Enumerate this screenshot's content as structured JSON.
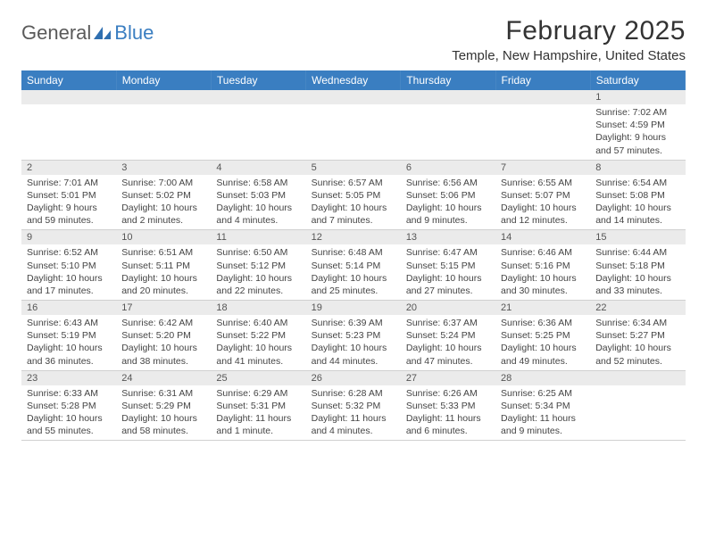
{
  "logo": {
    "text_general": "General",
    "text_blue": "Blue",
    "accent_color": "#2f6fb0"
  },
  "title": "February 2025",
  "location": "Temple, New Hampshire, United States",
  "colors": {
    "header_bg": "#3a7ec1",
    "header_text": "#ffffff",
    "daynum_bg": "#ebebeb",
    "text": "#333333",
    "body_text": "#444444",
    "border": "#d0d0d0",
    "background": "#ffffff"
  },
  "typography": {
    "title_fontsize": 30,
    "location_fontsize": 15,
    "header_fontsize": 12,
    "daynum_fontsize": 11,
    "detail_fontsize": 10.5
  },
  "day_names": [
    "Sunday",
    "Monday",
    "Tuesday",
    "Wednesday",
    "Thursday",
    "Friday",
    "Saturday"
  ],
  "weeks": [
    [
      null,
      null,
      null,
      null,
      null,
      null,
      {
        "n": "1",
        "sunrise": "Sunrise: 7:02 AM",
        "sunset": "Sunset: 4:59 PM",
        "day1": "Daylight: 9 hours",
        "day2": "and 57 minutes."
      }
    ],
    [
      {
        "n": "2",
        "sunrise": "Sunrise: 7:01 AM",
        "sunset": "Sunset: 5:01 PM",
        "day1": "Daylight: 9 hours",
        "day2": "and 59 minutes."
      },
      {
        "n": "3",
        "sunrise": "Sunrise: 7:00 AM",
        "sunset": "Sunset: 5:02 PM",
        "day1": "Daylight: 10 hours",
        "day2": "and 2 minutes."
      },
      {
        "n": "4",
        "sunrise": "Sunrise: 6:58 AM",
        "sunset": "Sunset: 5:03 PM",
        "day1": "Daylight: 10 hours",
        "day2": "and 4 minutes."
      },
      {
        "n": "5",
        "sunrise": "Sunrise: 6:57 AM",
        "sunset": "Sunset: 5:05 PM",
        "day1": "Daylight: 10 hours",
        "day2": "and 7 minutes."
      },
      {
        "n": "6",
        "sunrise": "Sunrise: 6:56 AM",
        "sunset": "Sunset: 5:06 PM",
        "day1": "Daylight: 10 hours",
        "day2": "and 9 minutes."
      },
      {
        "n": "7",
        "sunrise": "Sunrise: 6:55 AM",
        "sunset": "Sunset: 5:07 PM",
        "day1": "Daylight: 10 hours",
        "day2": "and 12 minutes."
      },
      {
        "n": "8",
        "sunrise": "Sunrise: 6:54 AM",
        "sunset": "Sunset: 5:08 PM",
        "day1": "Daylight: 10 hours",
        "day2": "and 14 minutes."
      }
    ],
    [
      {
        "n": "9",
        "sunrise": "Sunrise: 6:52 AM",
        "sunset": "Sunset: 5:10 PM",
        "day1": "Daylight: 10 hours",
        "day2": "and 17 minutes."
      },
      {
        "n": "10",
        "sunrise": "Sunrise: 6:51 AM",
        "sunset": "Sunset: 5:11 PM",
        "day1": "Daylight: 10 hours",
        "day2": "and 20 minutes."
      },
      {
        "n": "11",
        "sunrise": "Sunrise: 6:50 AM",
        "sunset": "Sunset: 5:12 PM",
        "day1": "Daylight: 10 hours",
        "day2": "and 22 minutes."
      },
      {
        "n": "12",
        "sunrise": "Sunrise: 6:48 AM",
        "sunset": "Sunset: 5:14 PM",
        "day1": "Daylight: 10 hours",
        "day2": "and 25 minutes."
      },
      {
        "n": "13",
        "sunrise": "Sunrise: 6:47 AM",
        "sunset": "Sunset: 5:15 PM",
        "day1": "Daylight: 10 hours",
        "day2": "and 27 minutes."
      },
      {
        "n": "14",
        "sunrise": "Sunrise: 6:46 AM",
        "sunset": "Sunset: 5:16 PM",
        "day1": "Daylight: 10 hours",
        "day2": "and 30 minutes."
      },
      {
        "n": "15",
        "sunrise": "Sunrise: 6:44 AM",
        "sunset": "Sunset: 5:18 PM",
        "day1": "Daylight: 10 hours",
        "day2": "and 33 minutes."
      }
    ],
    [
      {
        "n": "16",
        "sunrise": "Sunrise: 6:43 AM",
        "sunset": "Sunset: 5:19 PM",
        "day1": "Daylight: 10 hours",
        "day2": "and 36 minutes."
      },
      {
        "n": "17",
        "sunrise": "Sunrise: 6:42 AM",
        "sunset": "Sunset: 5:20 PM",
        "day1": "Daylight: 10 hours",
        "day2": "and 38 minutes."
      },
      {
        "n": "18",
        "sunrise": "Sunrise: 6:40 AM",
        "sunset": "Sunset: 5:22 PM",
        "day1": "Daylight: 10 hours",
        "day2": "and 41 minutes."
      },
      {
        "n": "19",
        "sunrise": "Sunrise: 6:39 AM",
        "sunset": "Sunset: 5:23 PM",
        "day1": "Daylight: 10 hours",
        "day2": "and 44 minutes."
      },
      {
        "n": "20",
        "sunrise": "Sunrise: 6:37 AM",
        "sunset": "Sunset: 5:24 PM",
        "day1": "Daylight: 10 hours",
        "day2": "and 47 minutes."
      },
      {
        "n": "21",
        "sunrise": "Sunrise: 6:36 AM",
        "sunset": "Sunset: 5:25 PM",
        "day1": "Daylight: 10 hours",
        "day2": "and 49 minutes."
      },
      {
        "n": "22",
        "sunrise": "Sunrise: 6:34 AM",
        "sunset": "Sunset: 5:27 PM",
        "day1": "Daylight: 10 hours",
        "day2": "and 52 minutes."
      }
    ],
    [
      {
        "n": "23",
        "sunrise": "Sunrise: 6:33 AM",
        "sunset": "Sunset: 5:28 PM",
        "day1": "Daylight: 10 hours",
        "day2": "and 55 minutes."
      },
      {
        "n": "24",
        "sunrise": "Sunrise: 6:31 AM",
        "sunset": "Sunset: 5:29 PM",
        "day1": "Daylight: 10 hours",
        "day2": "and 58 minutes."
      },
      {
        "n": "25",
        "sunrise": "Sunrise: 6:29 AM",
        "sunset": "Sunset: 5:31 PM",
        "day1": "Daylight: 11 hours",
        "day2": "and 1 minute."
      },
      {
        "n": "26",
        "sunrise": "Sunrise: 6:28 AM",
        "sunset": "Sunset: 5:32 PM",
        "day1": "Daylight: 11 hours",
        "day2": "and 4 minutes."
      },
      {
        "n": "27",
        "sunrise": "Sunrise: 6:26 AM",
        "sunset": "Sunset: 5:33 PM",
        "day1": "Daylight: 11 hours",
        "day2": "and 6 minutes."
      },
      {
        "n": "28",
        "sunrise": "Sunrise: 6:25 AM",
        "sunset": "Sunset: 5:34 PM",
        "day1": "Daylight: 11 hours",
        "day2": "and 9 minutes."
      },
      null
    ]
  ]
}
